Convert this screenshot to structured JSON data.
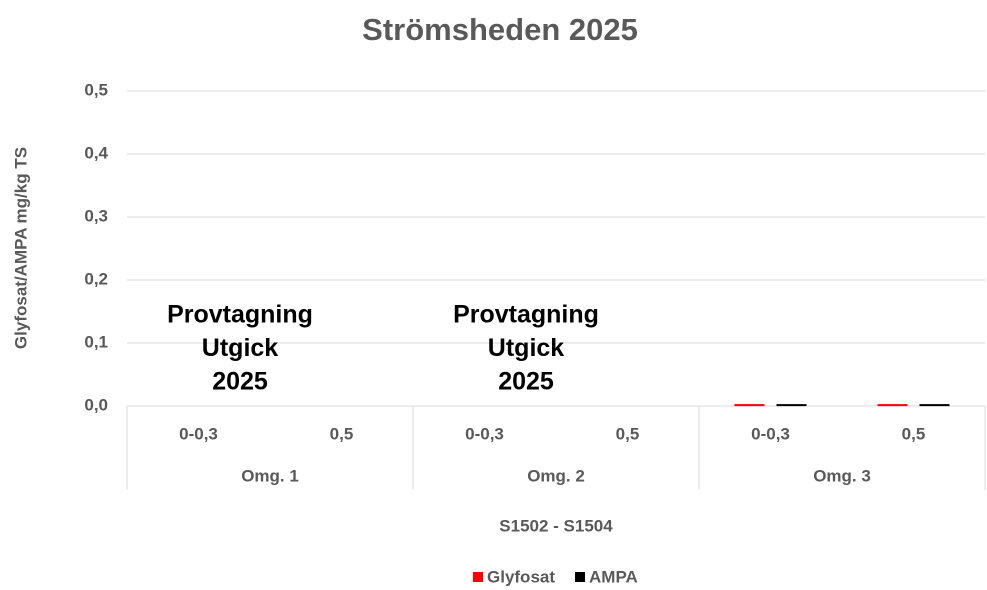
{
  "chart_data": {
    "type": "bar",
    "title": "Strömsheden 2025",
    "y_label": "Glyfosat/AMPA mg/kg TS",
    "x_label": "S1502 - S1504",
    "categories": [
      "0-0,3",
      "0,5",
      "0-0,3",
      "0,5",
      "0-0,3",
      "0,5"
    ],
    "groups": [
      "Omg. 1",
      "Omg. 2",
      "Omg. 3"
    ],
    "series": [
      {
        "name": "Glyfosat",
        "color": "#ff0000",
        "values": [
          null,
          null,
          null,
          null,
          0.003,
          0.003
        ]
      },
      {
        "name": "AMPA",
        "color": "#000000",
        "values": [
          null,
          null,
          null,
          null,
          0.003,
          0.003
        ]
      }
    ],
    "annotations": [
      {
        "lines": [
          "Provtagning",
          "Utgick",
          "2025"
        ]
      },
      {
        "lines": [
          "Provtagning",
          "Utgick",
          "2025"
        ]
      }
    ],
    "ylim": [
      0,
      0.5
    ],
    "yticks": [
      {
        "value": 0,
        "label": "0,0"
      },
      {
        "value": 0.1,
        "label": "0,1"
      },
      {
        "value": 0.2,
        "label": "0,2"
      },
      {
        "value": 0.3,
        "label": "0,3"
      },
      {
        "value": 0.4,
        "label": "0,4"
      },
      {
        "value": 0.5,
        "label": "0,5"
      }
    ],
    "grid": true,
    "legend": "bottom"
  }
}
